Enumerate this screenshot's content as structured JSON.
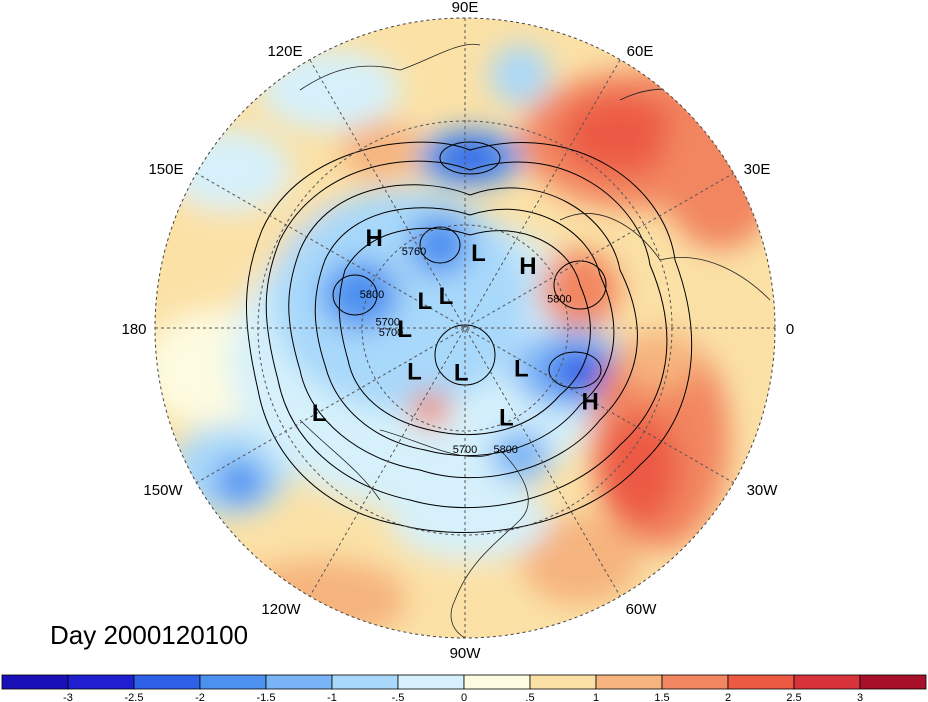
{
  "title": "Day 2000120100",
  "longitude_labels": {
    "lon_90e": "90E",
    "lon_60e": "60E",
    "lon_30e": "30E",
    "lon_0": "0",
    "lon_30w": "30W",
    "lon_60w": "60W",
    "lon_90w": "90W",
    "lon_120w": "120W",
    "lon_150w": "150W",
    "lon_180": "180",
    "lon_150e": "150E",
    "lon_120e": "120E"
  },
  "pressure_centers": [
    {
      "label": "L",
      "lon": 80,
      "lat": 62
    },
    {
      "label": "H",
      "lon": 45,
      "lat": 58
    },
    {
      "label": "H",
      "lon": 135,
      "lat": 45
    },
    {
      "label": "L",
      "lon": 145,
      "lat": 72
    },
    {
      "label": "L",
      "lon": 180,
      "lat": 68
    },
    {
      "label": "L",
      "lon": 120,
      "lat": 76
    },
    {
      "label": "L",
      "lon": -35,
      "lat": 65
    },
    {
      "label": "L",
      "lon": -140,
      "lat": 66
    },
    {
      "label": "L",
      "lon": -95,
      "lat": 74
    },
    {
      "label": "L",
      "lon": -65,
      "lat": 55
    },
    {
      "label": "H",
      "lon": -30,
      "lat": 40
    },
    {
      "label": "L",
      "lon": -150,
      "lat": 33
    }
  ],
  "contour_labels": [
    {
      "text": "5700",
      "lon": 178,
      "lat": 62
    },
    {
      "text": "5700",
      "lon": -174,
      "lat": 63
    },
    {
      "text": "5800",
      "lon": 162,
      "lat": 55
    },
    {
      "text": "5760",
      "lon": 125,
      "lat": 58
    },
    {
      "text": "5800",
      "lon": 15,
      "lat": 55
    },
    {
      "text": "5700",
      "lon": -90,
      "lat": 46
    },
    {
      "text": "5800",
      "lon": -72,
      "lat": 44
    }
  ],
  "colorbar": {
    "levels": [
      "-3",
      "-2.5",
      "-2",
      "-1.5",
      "-1",
      "-.5",
      "0",
      ".5",
      "1",
      "1.5",
      "2",
      "2.5",
      "3"
    ],
    "colors": [
      "#1f1fd0",
      "#2f60e8",
      "#4c90f0",
      "#78b4f6",
      "#a8d8fa",
      "#d6f1fb",
      "#fdfbe0",
      "#fbe1a6",
      "#f6b47e",
      "#f28660",
      "#ec5a44",
      "#d8323a",
      "#a8102a"
    ]
  }
}
